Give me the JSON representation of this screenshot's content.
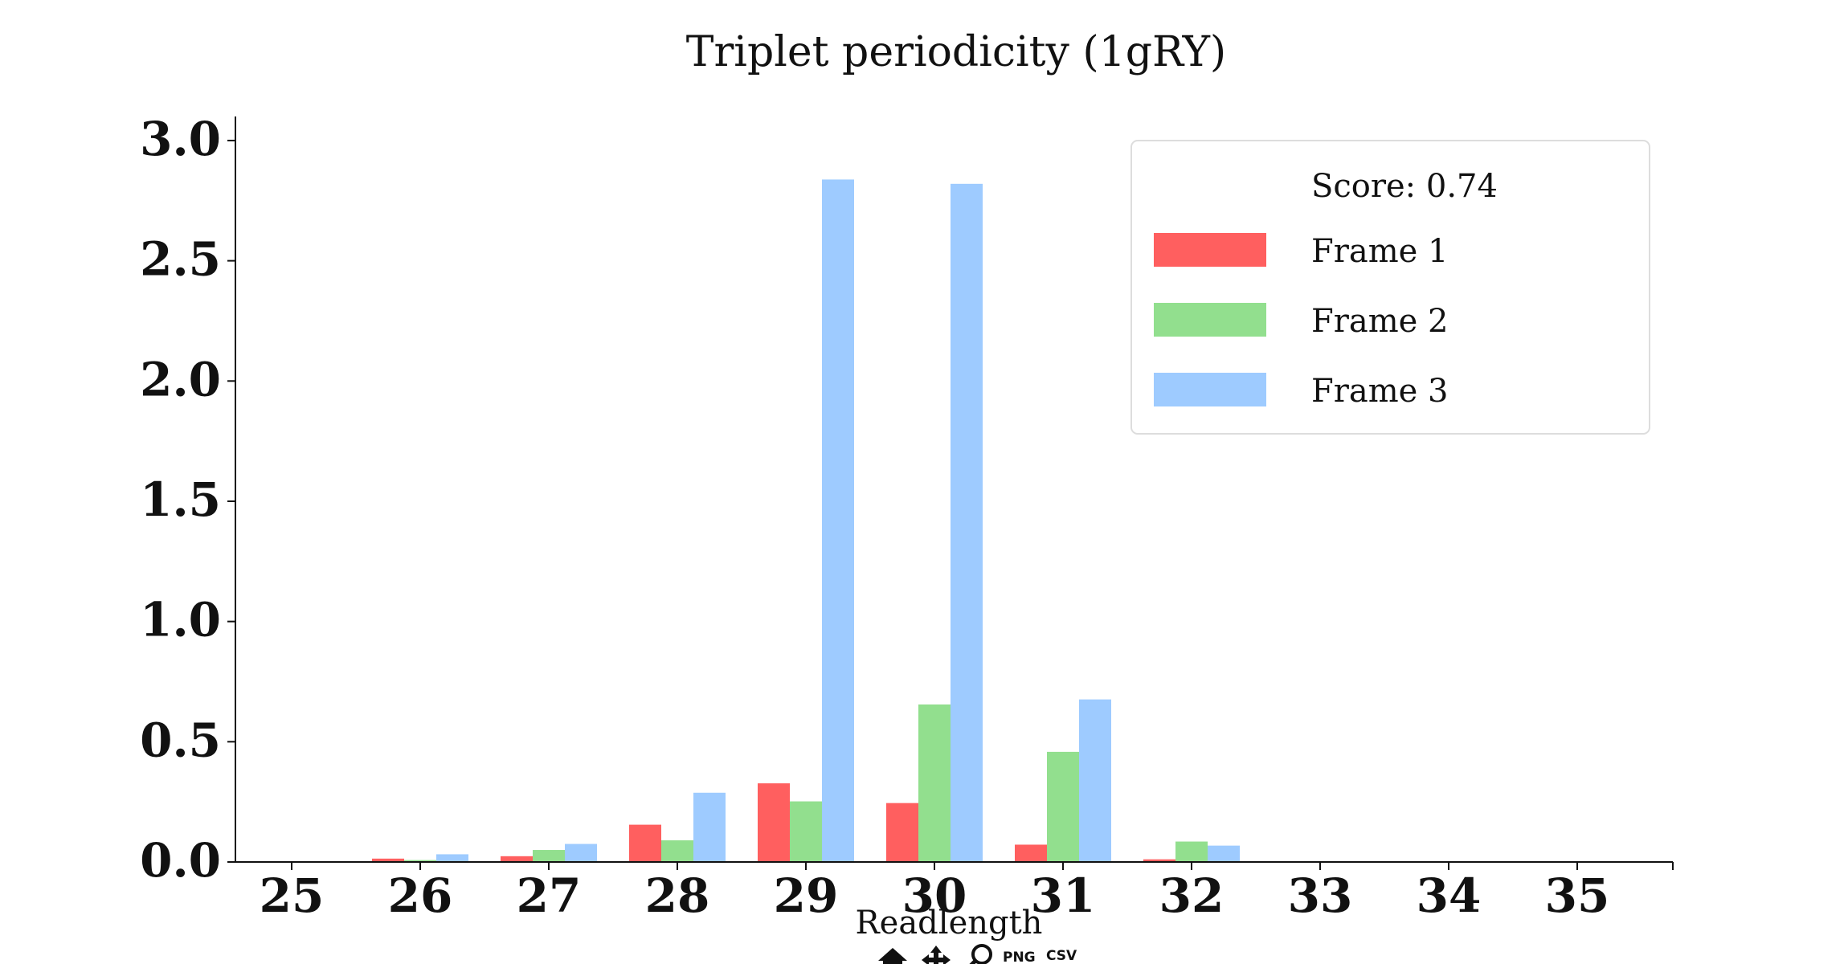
{
  "chart_data": {
    "type": "bar",
    "title": "Triplet periodicity (1gRY)",
    "xlabel": "Readlength",
    "ylabel": "",
    "categories": [
      "25",
      "26",
      "27",
      "28",
      "29",
      "30",
      "31",
      "32",
      "33",
      "34",
      "35"
    ],
    "ylim": [
      0,
      3.1
    ],
    "yticks": [
      "0.0",
      "0.5",
      "1.0",
      "1.5",
      "2.0",
      "2.5",
      "3.0"
    ],
    "series": [
      {
        "name": "Frame 1",
        "color": "#ff5f5f",
        "values": [
          0.003,
          0.014,
          0.024,
          0.155,
          0.327,
          0.245,
          0.072,
          0.011,
          0.001,
          0.0,
          0.0
        ]
      },
      {
        "name": "Frame 2",
        "color": "#92df8e",
        "values": [
          0.002,
          0.008,
          0.05,
          0.09,
          0.252,
          0.655,
          0.458,
          0.085,
          0.004,
          0.0,
          0.0
        ]
      },
      {
        "name": "Frame 3",
        "color": "#9ecbff",
        "values": [
          0.002,
          0.032,
          0.075,
          0.288,
          2.838,
          2.82,
          0.676,
          0.068,
          0.003,
          0.0,
          0.0
        ]
      }
    ],
    "legend": {
      "placement": "top-right",
      "score_text": "Score: 0.74"
    },
    "grid": false
  },
  "toolbar": {
    "home_icon": "home-icon",
    "pan_icon": "pan-icon",
    "zoom_icon": "zoom-icon",
    "png_label": "PNG",
    "csv_label": "CSV"
  }
}
